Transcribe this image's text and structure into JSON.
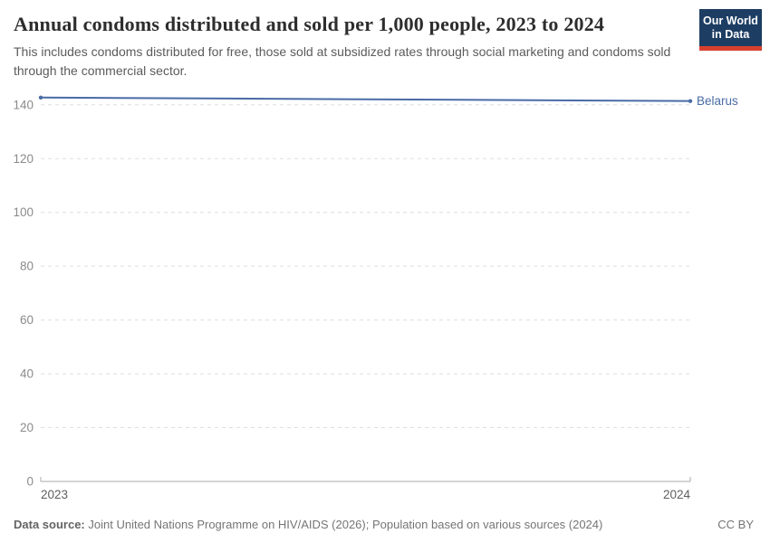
{
  "header": {
    "title": "Annual condoms distributed and sold per 1,000 people, 2023 to 2024",
    "subtitle": "This includes condoms distributed for free, those sold at subsidized rates through social marketing and condoms sold through the commercial sector.",
    "logo": {
      "line1": "Our World",
      "line2": "in Data"
    }
  },
  "chart_data": {
    "type": "line",
    "title": "Annual condoms distributed and sold per 1,000 people, 2023 to 2024",
    "x": [
      2023,
      2024
    ],
    "xlabels": [
      "2023",
      "2024"
    ],
    "series": [
      {
        "name": "Belarus",
        "values": [
          142.7,
          141.4
        ],
        "color": "#4a6ba5"
      }
    ],
    "yticks": [
      0,
      20,
      40,
      60,
      80,
      100,
      120,
      140
    ],
    "ylim": [
      0,
      143.3
    ],
    "xlabel": "",
    "ylabel": "",
    "grid": "horizontal-dashed",
    "legend": "end-of-line-label"
  },
  "footer": {
    "source_label": "Data source:",
    "source_text": "Joint United Nations Programme on HIV/AIDS (2026); Population based on various sources (2024)",
    "license": "CC BY"
  },
  "colors": {
    "line": "#4a6ba5",
    "entity_label": "#4a6ba5",
    "gridline": "#dedede",
    "axis": "#a9a9a9",
    "ytick_label": "#8b8b8b",
    "xtick_label": "#5f5f5f",
    "logo_bg": "#1d3d63",
    "logo_stripe": "#d8402e"
  }
}
